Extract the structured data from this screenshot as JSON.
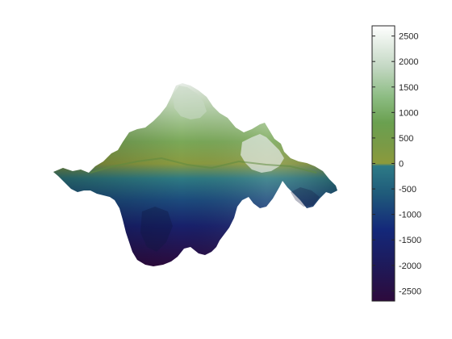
{
  "chart_data": {
    "type": "surface",
    "title": "",
    "xlabel": "",
    "ylabel": "",
    "zlabel": "",
    "axes_visible": false,
    "grid": false,
    "colorbar": {
      "placement": "right",
      "limits": [
        -2700,
        2700
      ],
      "ticks": [
        2500,
        2000,
        1500,
        1000,
        500,
        0,
        -500,
        -1000,
        -1500,
        -2000,
        -2500
      ],
      "tick_labels": [
        "2500",
        "2000",
        "1500",
        "1000",
        "500",
        "0",
        "-500",
        "-1000",
        "-1500",
        "-2000",
        "-2500"
      ],
      "colormap_stops": [
        {
          "value": -2700,
          "color": "#2d0a3c"
        },
        {
          "value": -2000,
          "color": "#1e1a5a"
        },
        {
          "value": -1300,
          "color": "#14287a"
        },
        {
          "value": -600,
          "color": "#1f5a7a"
        },
        {
          "value": -50,
          "color": "#2d7a86"
        },
        {
          "value": 0,
          "color": "#8c9a3c"
        },
        {
          "value": 350,
          "color": "#7a9a46"
        },
        {
          "value": 800,
          "color": "#6aa050"
        },
        {
          "value": 1300,
          "color": "#8cbc82"
        },
        {
          "value": 1900,
          "color": "#c4d8c4"
        },
        {
          "value": 2700,
          "color": "#ffffff"
        }
      ]
    }
  }
}
